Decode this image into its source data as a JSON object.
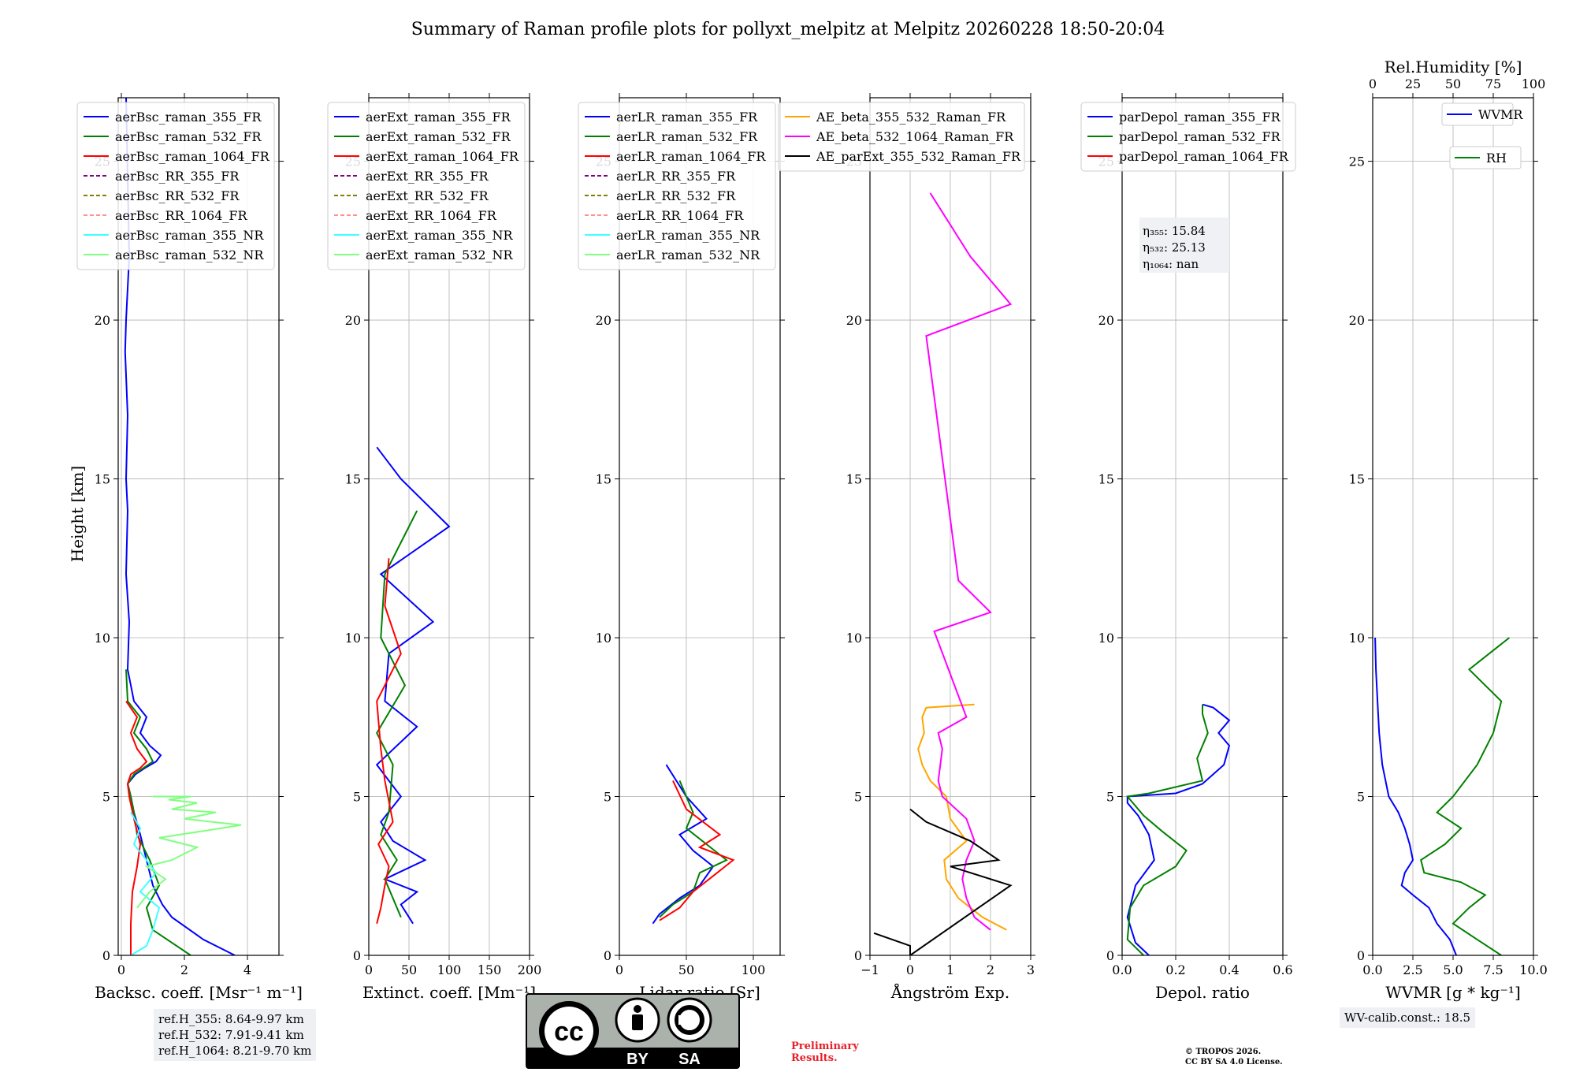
{
  "title": "Summary of Raman profile plots for pollyxt_melpitz at Melpitz 20260228 18:50-20:04",
  "ylabel": "Height [km]",
  "colors": {
    "c355": "#0000ff",
    "c532": "#008000",
    "c1064": "#ff0000",
    "nr355": "#40ffff",
    "nr532": "#80ff80",
    "rr355": "#800080",
    "rr532": "#808000",
    "rr1064": "#ff9090",
    "ae1": "#ffa500",
    "ae2": "#ff00ff",
    "ae3": "#000000"
  },
  "chart_data": [
    {
      "id": "bsc",
      "type": "line",
      "xlabel": "Backsc. coeff. [Msr⁻¹ m⁻¹]",
      "xlim": [
        -0.1,
        5
      ],
      "ylim": [
        0,
        27
      ],
      "xticks": [
        0,
        2,
        4
      ],
      "xtick_labels": [
        "0",
        "2",
        "4"
      ],
      "yticks": [
        0,
        5,
        10,
        15,
        20,
        25
      ],
      "ytick_labels": [
        "0",
        "5",
        "10",
        "15",
        "20",
        "25"
      ],
      "legend": [
        "aerBsc_raman_355_FR",
        "aerBsc_raman_532_FR",
        "aerBsc_raman_1064_FR",
        "aerBsc_RR_355_FR",
        "aerBsc_RR_532_FR",
        "aerBsc_RR_1064_FR",
        "aerBsc_raman_355_NR",
        "aerBsc_raman_532_NR"
      ],
      "series": [
        {
          "name": "aerBsc_raman_355_FR",
          "x": [
            3.6,
            2.6,
            1.6,
            1.3,
            1.0,
            0.8,
            0.6,
            0.4,
            0.3,
            0.2,
            0.45,
            0.75,
            1.1,
            1.25,
            0.9,
            0.6,
            0.8,
            0.4,
            0.2,
            0.25,
            0.15,
            0.2,
            0.15,
            0.2,
            0.12,
            0.15,
            0.2,
            0.25,
            0.15
          ],
          "y": [
            0,
            0.5,
            1.2,
            1.6,
            2.2,
            3.0,
            3.8,
            4.5,
            5.0,
            5.4,
            5.7,
            5.9,
            6.1,
            6.3,
            6.6,
            7.0,
            7.5,
            8.0,
            9.0,
            10.5,
            12.0,
            14.0,
            15.0,
            17.0,
            19.0,
            20.0,
            21.0,
            22.0,
            27.0
          ]
        },
        {
          "name": "aerBsc_raman_532_FR",
          "x": [
            2.2,
            1.0,
            0.8,
            1.2,
            0.9,
            0.5,
            0.4,
            0.3,
            0.2,
            0.4,
            0.7,
            1.0,
            0.8,
            0.4,
            0.6,
            0.2,
            0.15
          ],
          "y": [
            0,
            0.8,
            1.5,
            2.2,
            3.0,
            3.8,
            4.5,
            5.0,
            5.4,
            5.7,
            5.9,
            6.1,
            6.5,
            7.0,
            7.5,
            8.0,
            9.0
          ]
        },
        {
          "name": "aerBsc_raman_1064_FR",
          "x": [
            0.3,
            0.3,
            0.35,
            0.5,
            0.6,
            0.4,
            0.25,
            0.2,
            0.3,
            0.6,
            0.8,
            0.5,
            0.3,
            0.5,
            0.15
          ],
          "y": [
            0,
            1.0,
            2.0,
            2.8,
            3.5,
            4.3,
            5.0,
            5.4,
            5.7,
            5.9,
            6.1,
            6.5,
            7.0,
            7.5,
            8.0
          ]
        },
        {
          "name": "aerBsc_raman_355_NR",
          "x": [
            0.3,
            0.8,
            1.0,
            1.2,
            0.6,
            1.1,
            0.8,
            0.4,
            0.6,
            0.3
          ],
          "y": [
            0,
            0.3,
            0.8,
            1.5,
            2.0,
            2.6,
            3.0,
            3.5,
            4.0,
            4.5
          ]
        },
        {
          "name": "aerBsc_raman_532_NR",
          "x": [
            0.5,
            0.9,
            1.4,
            0.8,
            1.6,
            2.4,
            1.2,
            3.8,
            2.0,
            3.0,
            1.6,
            2.4,
            1.5,
            2.2,
            1.0
          ],
          "y": [
            1.5,
            2.0,
            2.4,
            2.8,
            3.0,
            3.4,
            3.7,
            4.1,
            4.3,
            4.5,
            4.6,
            4.8,
            4.9,
            5.0,
            5.0
          ]
        }
      ]
    },
    {
      "id": "ext",
      "type": "line",
      "xlabel": "Extinct. coeff. [Mm⁻¹]",
      "xlim": [
        0,
        200
      ],
      "ylim": [
        0,
        27
      ],
      "xticks": [
        0,
        50,
        100,
        150,
        200
      ],
      "xtick_labels": [
        "0",
        "50",
        "100",
        "150",
        "200"
      ],
      "yticks": [
        0,
        5,
        10,
        15,
        20,
        25
      ],
      "ytick_labels": [
        "0",
        "5",
        "10",
        "15",
        "20",
        "25"
      ],
      "legend": [
        "aerExt_raman_355_FR",
        "aerExt_raman_532_FR",
        "aerExt_raman_1064_FR",
        "aerExt_RR_355_FR",
        "aerExt_RR_532_FR",
        "aerExt_RR_1064_FR",
        "aerExt_raman_355_NR",
        "aerExt_raman_532_NR"
      ],
      "series": [
        {
          "name": "aerExt_raman_355_FR",
          "x": [
            55,
            40,
            60,
            20,
            70,
            30,
            15,
            40,
            10,
            60,
            20,
            25,
            80,
            15,
            100,
            40,
            10
          ],
          "y": [
            1.0,
            1.6,
            2.0,
            2.4,
            3.0,
            3.6,
            4.2,
            5.0,
            6.0,
            7.2,
            8.0,
            9.5,
            10.5,
            12.0,
            13.5,
            15.0,
            16.0
          ]
        },
        {
          "name": "aerExt_raman_532_FR",
          "x": [
            40,
            30,
            20,
            35,
            15,
            25,
            30,
            10,
            45,
            15,
            20,
            60
          ],
          "y": [
            1.2,
            1.8,
            2.4,
            3.0,
            3.8,
            4.5,
            6.0,
            7.0,
            8.5,
            10.0,
            12.0,
            14.0
          ]
        },
        {
          "name": "aerExt_raman_1064_FR",
          "x": [
            10,
            15,
            20,
            25,
            12,
            30,
            20,
            15,
            10,
            40,
            20,
            25
          ],
          "y": [
            1.0,
            1.5,
            2.2,
            2.8,
            3.5,
            4.2,
            5.5,
            6.5,
            8.0,
            9.5,
            11.0,
            12.5
          ]
        }
      ]
    },
    {
      "id": "lr",
      "type": "line",
      "xlabel": "Lidar ratio [Sr]",
      "xlim": [
        0,
        120
      ],
      "ylim": [
        0,
        27
      ],
      "xticks": [
        0,
        50,
        100
      ],
      "xtick_labels": [
        "0",
        "50",
        "100"
      ],
      "yticks": [
        0,
        5,
        10,
        15,
        20,
        25
      ],
      "ytick_labels": [
        "0",
        "5",
        "10",
        "15",
        "20",
        "25"
      ],
      "legend": [
        "aerLR_raman_355_FR",
        "aerLR_raman_532_FR",
        "aerLR_raman_1064_FR",
        "aerLR_RR_355_FR",
        "aerLR_RR_532_FR",
        "aerLR_RR_1064_FR",
        "aerLR_raman_355_NR",
        "aerLR_raman_532_NR"
      ],
      "series": [
        {
          "name": "aerLR_raman_355_FR",
          "x": [
            25,
            30,
            45,
            60,
            70,
            55,
            45,
            65,
            50,
            35
          ],
          "y": [
            1.0,
            1.3,
            1.8,
            2.2,
            2.8,
            3.3,
            3.8,
            4.3,
            5.0,
            6.0
          ]
        },
        {
          "name": "aerLR_raman_532_FR",
          "x": [
            30,
            40,
            55,
            60,
            80,
            65,
            50,
            55,
            45
          ],
          "y": [
            1.2,
            1.6,
            2.0,
            2.6,
            3.0,
            3.5,
            4.0,
            4.5,
            5.5
          ]
        },
        {
          "name": "aerLR_raman_1064_FR",
          "x": [
            30,
            45,
            55,
            70,
            85,
            60,
            75,
            50,
            40
          ],
          "y": [
            1.1,
            1.5,
            2.0,
            2.5,
            3.0,
            3.4,
            3.8,
            4.6,
            5.5
          ]
        }
      ]
    },
    {
      "id": "ae",
      "type": "line",
      "xlabel": "Ångström Exp.",
      "xlim": [
        -1,
        3
      ],
      "ylim": [
        0,
        27
      ],
      "xticks": [
        -1,
        0,
        1,
        2,
        3
      ],
      "xtick_labels": [
        "−1",
        "0",
        "1",
        "2",
        "3"
      ],
      "yticks": [
        0,
        5,
        10,
        15,
        20,
        25
      ],
      "ytick_labels": [
        "0",
        "5",
        "10",
        "15",
        "20",
        "25"
      ],
      "legend": [
        "AE_beta_355_532_Raman_FR",
        "AE_beta_532_1064_Raman_FR",
        "AE_parExt_355_532_Raman_FR"
      ],
      "series": [
        {
          "name": "AE_beta_355_532_Raman_FR",
          "x": [
            2.4,
            1.8,
            1.2,
            0.9,
            0.85,
            1.4,
            1.0,
            0.9,
            0.5,
            0.3,
            0.2,
            0.35,
            0.3,
            0.4,
            1.6
          ],
          "y": [
            0.8,
            1.2,
            1.8,
            2.4,
            3.0,
            3.6,
            4.3,
            5.0,
            5.5,
            6.0,
            6.5,
            7.0,
            7.5,
            7.8,
            7.9
          ]
        },
        {
          "name": "AE_beta_532_1064_Raman_FR",
          "x": [
            2.0,
            1.6,
            1.4,
            1.3,
            1.4,
            1.6,
            1.4,
            0.8,
            0.7,
            0.75,
            0.8,
            0.7,
            1.4,
            0.6,
            2.0,
            1.2,
            0.4,
            2.5,
            1.5,
            0.5
          ],
          "y": [
            0.8,
            1.2,
            1.8,
            2.4,
            3.0,
            3.6,
            4.3,
            5.0,
            5.5,
            6.0,
            6.5,
            7.0,
            7.5,
            10.2,
            10.8,
            11.8,
            19.5,
            20.5,
            22.0,
            24.0
          ]
        },
        {
          "name": "AE_parExt_355_532_Raman_FR",
          "x": [
            -0.9,
            0.0,
            0.0,
            2.5,
            1.0,
            2.2,
            1.5,
            0.4,
            0.0
          ],
          "y": [
            0.7,
            0.3,
            0.0,
            2.2,
            2.8,
            3.0,
            3.6,
            4.2,
            4.6
          ]
        }
      ]
    },
    {
      "id": "dep",
      "type": "line",
      "xlabel": "Depol. ratio",
      "xlim": [
        0,
        0.6
      ],
      "ylim": [
        0,
        27
      ],
      "xticks": [
        0.0,
        0.2,
        0.4,
        0.6
      ],
      "xtick_labels": [
        "0.0",
        "0.2",
        "0.4",
        "0.6"
      ],
      "yticks": [
        0,
        5,
        10,
        15,
        20,
        25
      ],
      "ytick_labels": [
        "0",
        "5",
        "10",
        "15",
        "20",
        "25"
      ],
      "legend": [
        "parDepol_raman_355_FR",
        "parDepol_raman_532_FR",
        "parDepol_raman_1064_FR"
      ],
      "annotations": [
        "η₃₅₅: 15.84",
        "η₅₃₂: 25.13",
        "η₁₀₆₄: nan"
      ],
      "series": [
        {
          "name": "parDepol_raman_355_FR",
          "x": [
            0.1,
            0.05,
            0.02,
            0.05,
            0.12,
            0.1,
            0.06,
            0.02,
            0.02,
            0.2,
            0.3,
            0.38,
            0.4,
            0.36,
            0.4,
            0.34,
            0.3
          ],
          "y": [
            0.0,
            0.4,
            1.2,
            2.2,
            3.0,
            3.8,
            4.4,
            4.8,
            5.0,
            5.1,
            5.4,
            6.0,
            6.6,
            7.0,
            7.4,
            7.8,
            7.9
          ]
        },
        {
          "name": "parDepol_raman_532_FR",
          "x": [
            0.08,
            0.02,
            0.03,
            0.08,
            0.2,
            0.24,
            0.15,
            0.08,
            0.02,
            0.1,
            0.3,
            0.28,
            0.32,
            0.3,
            0.3
          ],
          "y": [
            0.0,
            0.5,
            1.5,
            2.2,
            2.8,
            3.3,
            3.9,
            4.4,
            5.0,
            5.1,
            5.5,
            6.2,
            7.0,
            7.6,
            7.9
          ]
        }
      ]
    },
    {
      "id": "wv",
      "type": "line",
      "xlabel": "WVMR [g * kg⁻¹]",
      "toplabel": "Rel.Humidity [%]",
      "xlim": [
        0,
        10
      ],
      "ylim": [
        0,
        27
      ],
      "xticks": [
        0.0,
        2.5,
        5.0,
        7.5,
        10.0
      ],
      "xtick_labels": [
        "0.0",
        "2.5",
        "5.0",
        "7.5",
        "10.0"
      ],
      "top_xlim": [
        0,
        100
      ],
      "top_xticks": [
        0,
        25,
        50,
        75,
        100
      ],
      "top_xtick_labels": [
        "0",
        "25",
        "50",
        "75",
        "100"
      ],
      "yticks": [
        0,
        5,
        10,
        15,
        20,
        25
      ],
      "ytick_labels": [
        "0",
        "5",
        "10",
        "15",
        "20",
        "25"
      ],
      "legend": [
        "WVMR",
        "RH"
      ],
      "series": [
        {
          "name": "WVMR",
          "x": [
            5.2,
            4.8,
            4.0,
            3.5,
            2.5,
            1.8,
            2.0,
            2.5,
            2.3,
            2.0,
            1.6,
            1.0,
            0.6,
            0.4,
            0.3,
            0.2,
            0.15
          ],
          "y": [
            0.0,
            0.5,
            1.0,
            1.5,
            1.9,
            2.2,
            2.6,
            3.0,
            3.5,
            4.0,
            4.5,
            5.0,
            6.0,
            7.0,
            8.0,
            9.0,
            10.0
          ]
        },
        {
          "name": "RH",
          "x": [
            8.0,
            6.5,
            5.0,
            6.0,
            7.0,
            5.5,
            3.2,
            3.0,
            4.5,
            5.5,
            4.0,
            5.0,
            6.5,
            7.5,
            8.0,
            6.0,
            8.5
          ],
          "y": [
            0.0,
            0.5,
            1.0,
            1.5,
            1.9,
            2.3,
            2.6,
            3.0,
            3.5,
            4.0,
            4.5,
            5.0,
            6.0,
            7.0,
            8.0,
            9.0,
            10.0
          ]
        }
      ]
    }
  ],
  "ref_box": [
    "ref.H_355: 8.64-9.97 km",
    "ref.H_532: 7.91-9.41 km",
    "ref.H_1064: 8.21-9.70 km"
  ],
  "wv_calib": "WV-calib.const.: 18.5",
  "cc": {
    "cc": "cc",
    "by": "BY",
    "sa": "SA"
  },
  "prelim": [
    "Preliminary",
    "Results."
  ],
  "license": [
    "© TROPOS 2026.",
    "CC BY SA 4.0 License."
  ]
}
